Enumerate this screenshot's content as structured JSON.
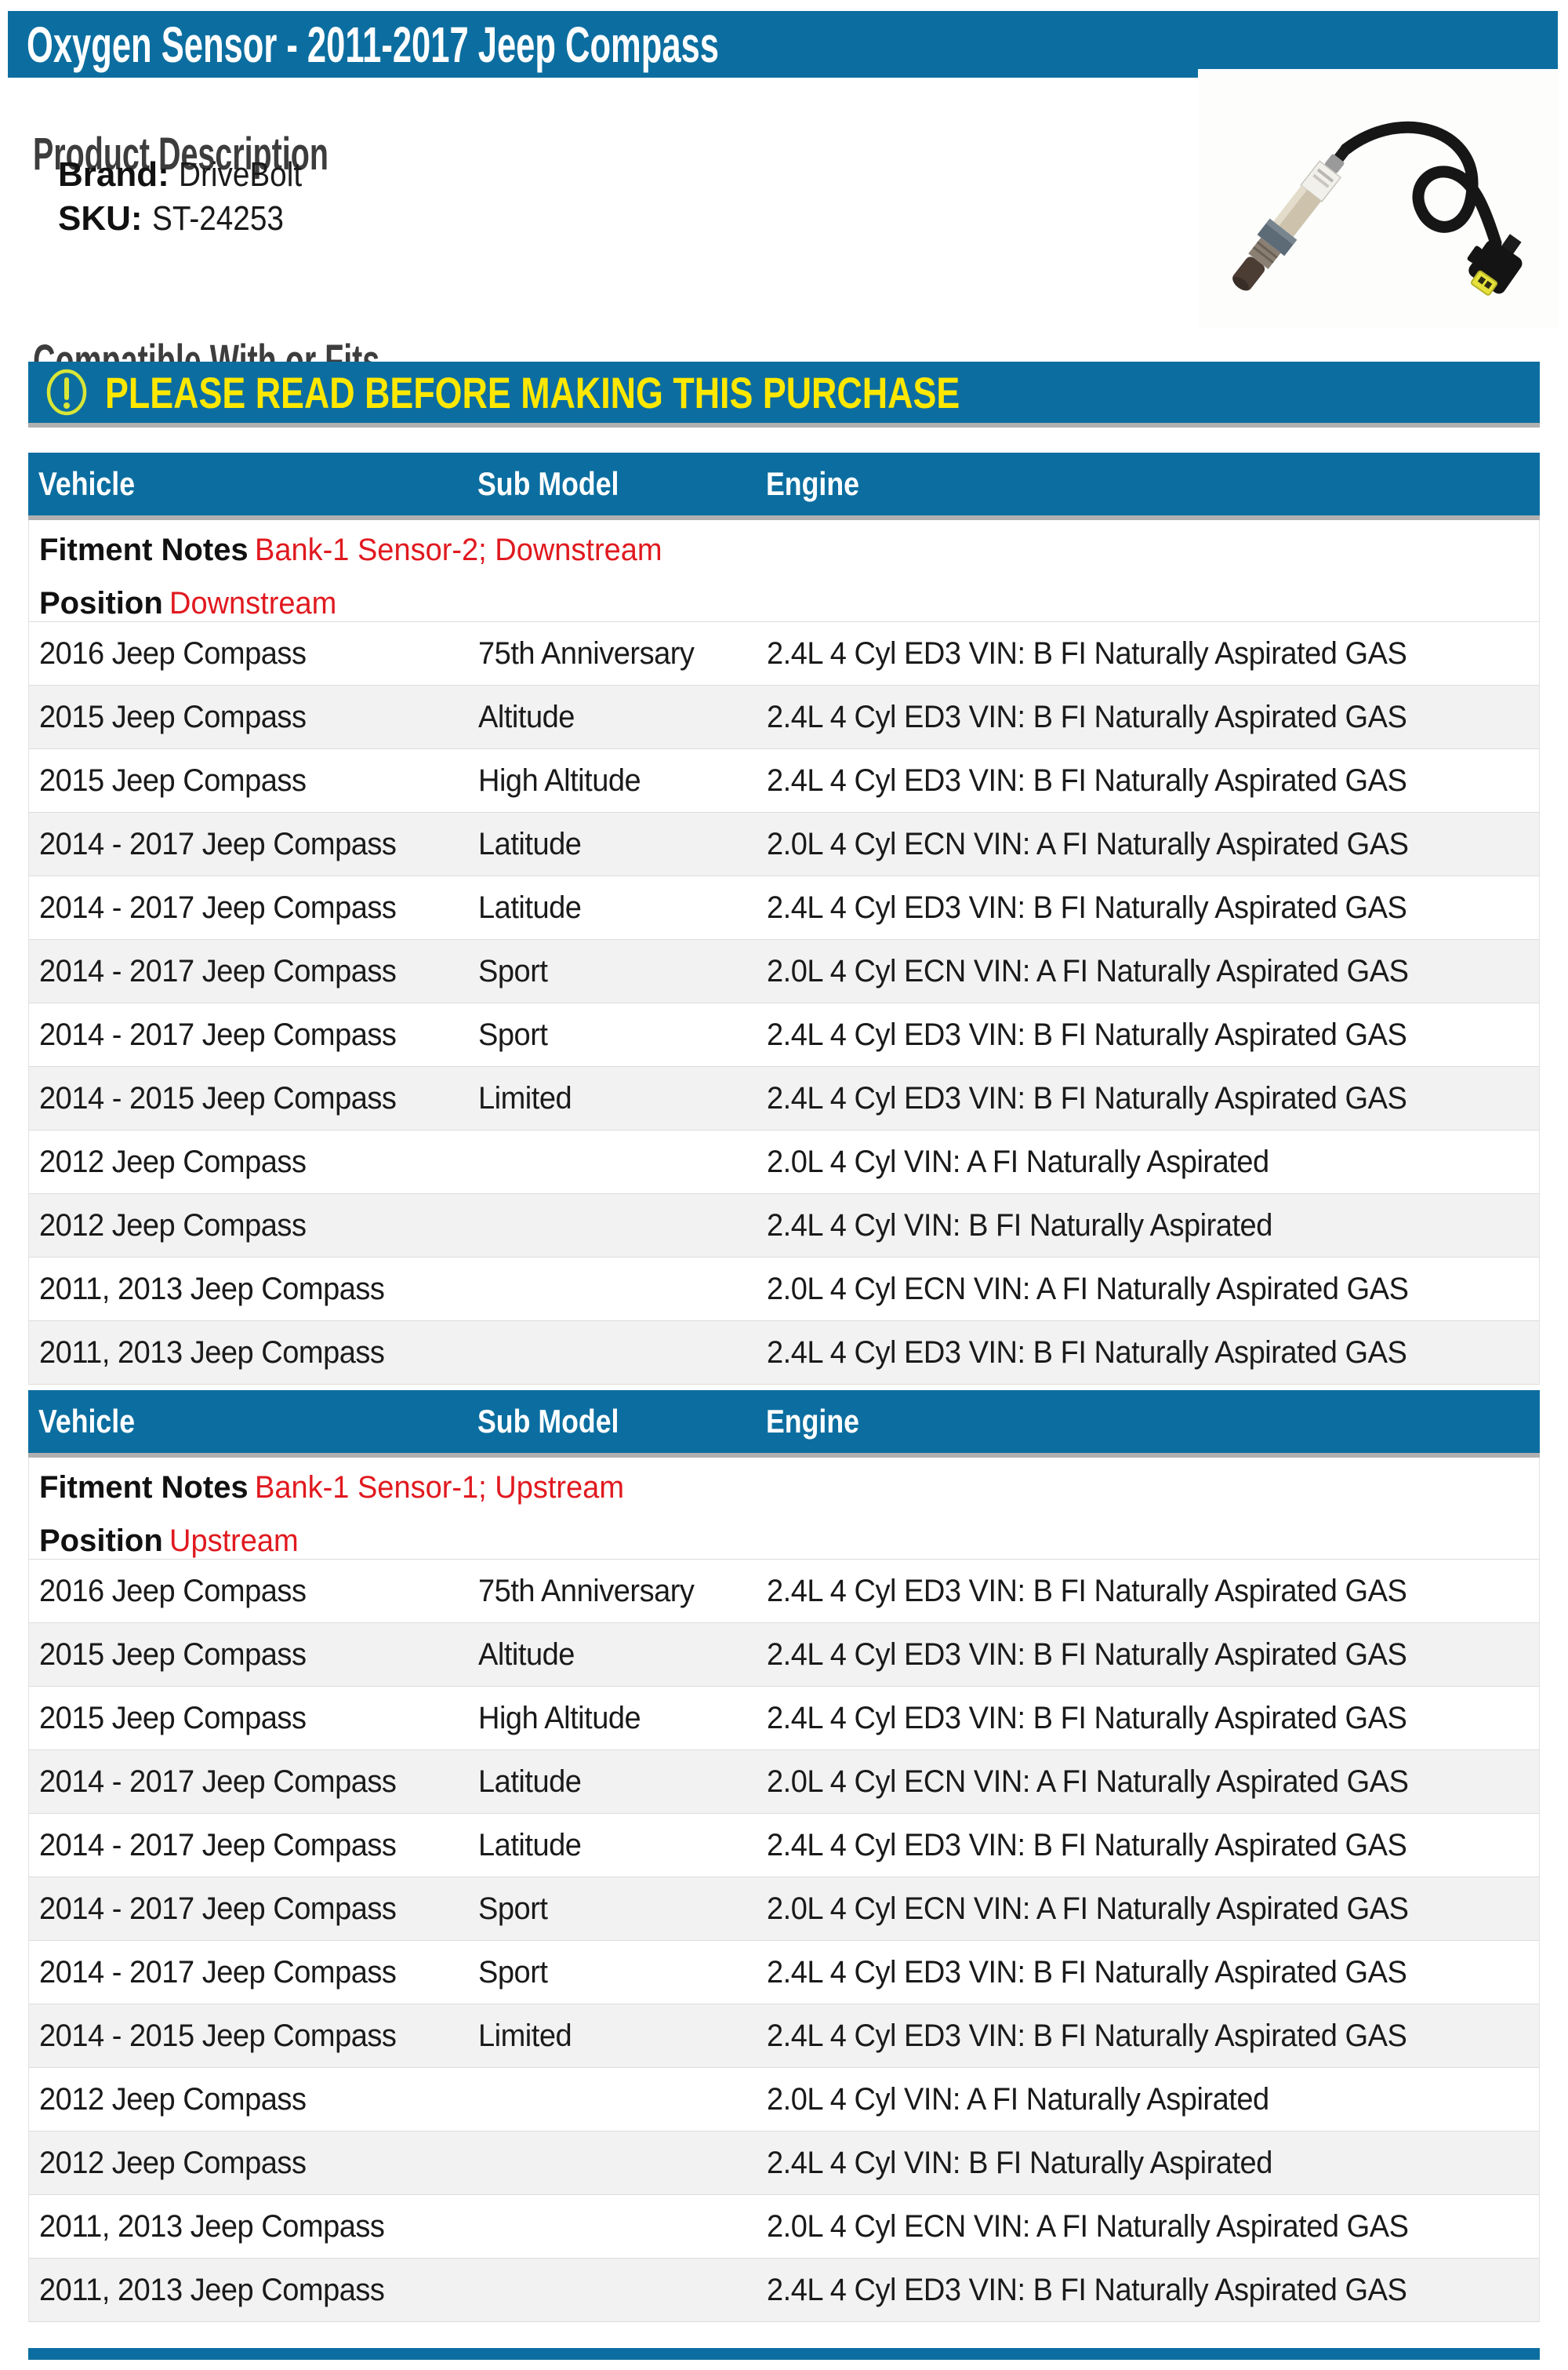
{
  "title": "Oxygen Sensor - 2011-2017 Jeep Compass",
  "product": {
    "heading": "Product Description",
    "brand_label": "Brand:",
    "brand_value": "DriveBolt",
    "sku_label": "SKU:",
    "sku_value": "ST-24253"
  },
  "image": {
    "alt": "Oxygen sensor with black cable and yellow connector"
  },
  "compatibility": {
    "heading": "Compatible With or Fits",
    "warning": "PLEASE READ BEFORE MAKING THIS PURCHASE",
    "warning_icon": "exclamation-circle-icon"
  },
  "colors": {
    "accent_blue": "#0C6EA0",
    "warning_yellow": "#FFE800",
    "icon_yellow_green": "#D9E637",
    "note_red": "#E0191F",
    "row_alt_gray": "#F2F2F2",
    "shadow_gray": "#B0B0B0"
  },
  "tables": [
    {
      "columns": [
        "Vehicle",
        "Sub Model",
        "Engine"
      ],
      "fitment_notes_label": "Fitment Notes",
      "fitment_notes": "Bank-1 Sensor-2; Downstream",
      "position_label": "Position",
      "position": "Downstream",
      "rows": [
        {
          "vehicle": "2016 Jeep Compass",
          "sub_model": "75th Anniversary",
          "engine": "2.4L 4 Cyl ED3 VIN: B FI Naturally Aspirated GAS"
        },
        {
          "vehicle": "2015 Jeep Compass",
          "sub_model": "Altitude",
          "engine": "2.4L 4 Cyl ED3 VIN: B FI Naturally Aspirated GAS"
        },
        {
          "vehicle": "2015 Jeep Compass",
          "sub_model": "High Altitude",
          "engine": "2.4L 4 Cyl ED3 VIN: B FI Naturally Aspirated GAS"
        },
        {
          "vehicle": "2014 - 2017 Jeep Compass",
          "sub_model": "Latitude",
          "engine": "2.0L 4 Cyl ECN VIN: A FI Naturally Aspirated GAS"
        },
        {
          "vehicle": "2014 - 2017 Jeep Compass",
          "sub_model": "Latitude",
          "engine": "2.4L 4 Cyl ED3 VIN: B FI Naturally Aspirated GAS"
        },
        {
          "vehicle": "2014 - 2017 Jeep Compass",
          "sub_model": "Sport",
          "engine": "2.0L 4 Cyl ECN VIN: A FI Naturally Aspirated GAS"
        },
        {
          "vehicle": "2014 - 2017 Jeep Compass",
          "sub_model": "Sport",
          "engine": "2.4L 4 Cyl ED3 VIN: B FI Naturally Aspirated GAS"
        },
        {
          "vehicle": "2014 - 2015 Jeep Compass",
          "sub_model": "Limited",
          "engine": "2.4L 4 Cyl ED3 VIN: B FI Naturally Aspirated GAS"
        },
        {
          "vehicle": "2012 Jeep Compass",
          "sub_model": "",
          "engine": "2.0L 4 Cyl VIN: A FI Naturally Aspirated"
        },
        {
          "vehicle": "2012 Jeep Compass",
          "sub_model": "",
          "engine": "2.4L 4 Cyl VIN: B FI Naturally Aspirated"
        },
        {
          "vehicle": "2011, 2013 Jeep Compass",
          "sub_model": "",
          "engine": "2.0L 4 Cyl ECN VIN: A FI Naturally Aspirated GAS"
        },
        {
          "vehicle": "2011, 2013 Jeep Compass",
          "sub_model": "",
          "engine": "2.4L 4 Cyl ED3 VIN: B FI Naturally Aspirated GAS"
        }
      ]
    },
    {
      "columns": [
        "Vehicle",
        "Sub Model",
        "Engine"
      ],
      "fitment_notes_label": "Fitment Notes",
      "fitment_notes": "Bank-1 Sensor-1; Upstream",
      "position_label": "Position",
      "position": "Upstream",
      "rows": [
        {
          "vehicle": "2016 Jeep Compass",
          "sub_model": "75th Anniversary",
          "engine": "2.4L 4 Cyl ED3 VIN: B FI Naturally Aspirated GAS"
        },
        {
          "vehicle": "2015 Jeep Compass",
          "sub_model": "Altitude",
          "engine": "2.4L 4 Cyl ED3 VIN: B FI Naturally Aspirated GAS"
        },
        {
          "vehicle": "2015 Jeep Compass",
          "sub_model": "High Altitude",
          "engine": "2.4L 4 Cyl ED3 VIN: B FI Naturally Aspirated GAS"
        },
        {
          "vehicle": "2014 - 2017 Jeep Compass",
          "sub_model": "Latitude",
          "engine": "2.0L 4 Cyl ECN VIN: A FI Naturally Aspirated GAS"
        },
        {
          "vehicle": "2014 - 2017 Jeep Compass",
          "sub_model": "Latitude",
          "engine": "2.4L 4 Cyl ED3 VIN: B FI Naturally Aspirated GAS"
        },
        {
          "vehicle": "2014 - 2017 Jeep Compass",
          "sub_model": "Sport",
          "engine": "2.0L 4 Cyl ECN VIN: A FI Naturally Aspirated GAS"
        },
        {
          "vehicle": "2014 - 2017 Jeep Compass",
          "sub_model": "Sport",
          "engine": "2.4L 4 Cyl ED3 VIN: B FI Naturally Aspirated GAS"
        },
        {
          "vehicle": "2014 - 2015 Jeep Compass",
          "sub_model": "Limited",
          "engine": "2.4L 4 Cyl ED3 VIN: B FI Naturally Aspirated GAS"
        },
        {
          "vehicle": "2012 Jeep Compass",
          "sub_model": "",
          "engine": "2.0L 4 Cyl VIN: A FI Naturally Aspirated"
        },
        {
          "vehicle": "2012 Jeep Compass",
          "sub_model": "",
          "engine": "2.4L 4 Cyl VIN: B FI Naturally Aspirated"
        },
        {
          "vehicle": "2011, 2013 Jeep Compass",
          "sub_model": "",
          "engine": "2.0L 4 Cyl ECN VIN: A FI Naturally Aspirated GAS"
        },
        {
          "vehicle": "2011, 2013 Jeep Compass",
          "sub_model": "",
          "engine": "2.4L 4 Cyl ED3 VIN: B FI Naturally Aspirated GAS"
        }
      ]
    }
  ]
}
